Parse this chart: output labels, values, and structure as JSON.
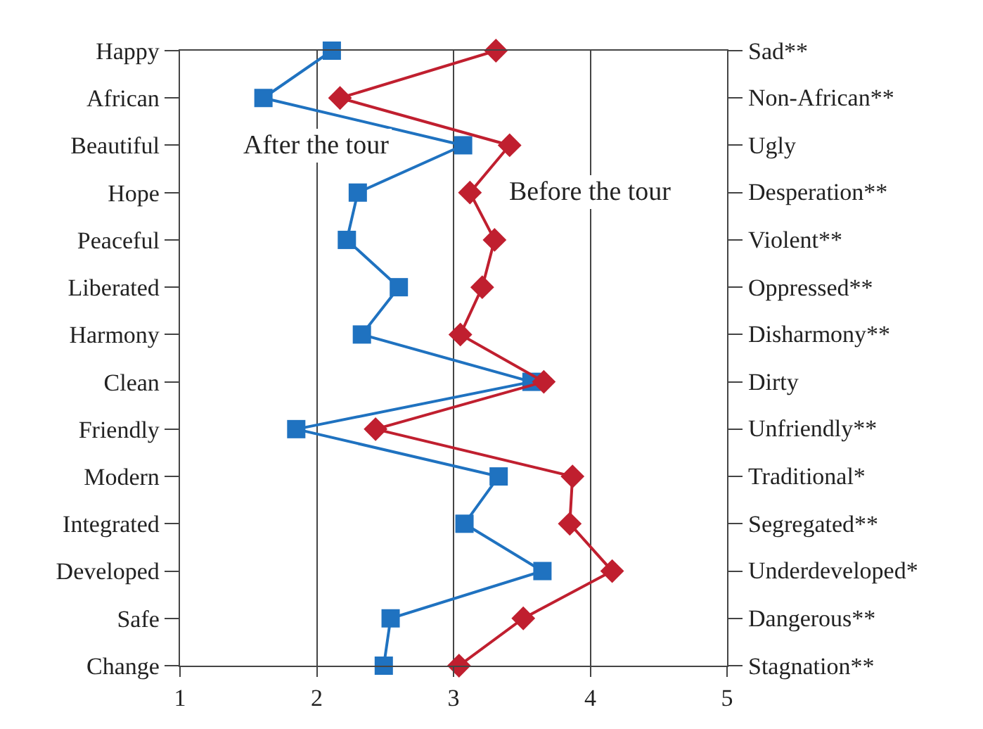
{
  "chart_data": {
    "type": "line",
    "orientation": "horizontal",
    "categories": [
      "Happy",
      "African",
      "Beautiful",
      "Hope",
      "Peaceful",
      "Liberated",
      "Harmony",
      "Clean",
      "Friendly",
      "Modern",
      "Integrated",
      "Developed",
      "Safe",
      "Change"
    ],
    "y2_categories": [
      "Sad**",
      "Non-African**",
      "Ugly",
      "Desperation**",
      "Violent**",
      "Oppressed**",
      "Disharmony**",
      "Dirty",
      "Unfriendly**",
      "Traditional*",
      "Segregated**",
      "Underdeveloped*",
      "Dangerous**",
      "Stagnation**"
    ],
    "series": [
      {
        "name": "After the tour",
        "color": "#1f72c0",
        "marker": "square",
        "values": [
          2.11,
          1.61,
          3.07,
          2.3,
          2.22,
          2.6,
          2.33,
          3.57,
          1.85,
          3.33,
          3.08,
          3.65,
          2.54,
          2.49
        ]
      },
      {
        "name": "Before the tour",
        "color": "#c01f2f",
        "marker": "diamond",
        "values": [
          3.31,
          2.17,
          3.41,
          3.12,
          3.3,
          3.21,
          3.05,
          3.66,
          2.43,
          3.87,
          3.85,
          4.16,
          3.51,
          3.04
        ]
      }
    ],
    "xlim": [
      1,
      5
    ],
    "xticks": [
      1,
      2,
      3,
      4,
      5
    ],
    "grid": "x",
    "legend": false,
    "line_style": "solid"
  }
}
